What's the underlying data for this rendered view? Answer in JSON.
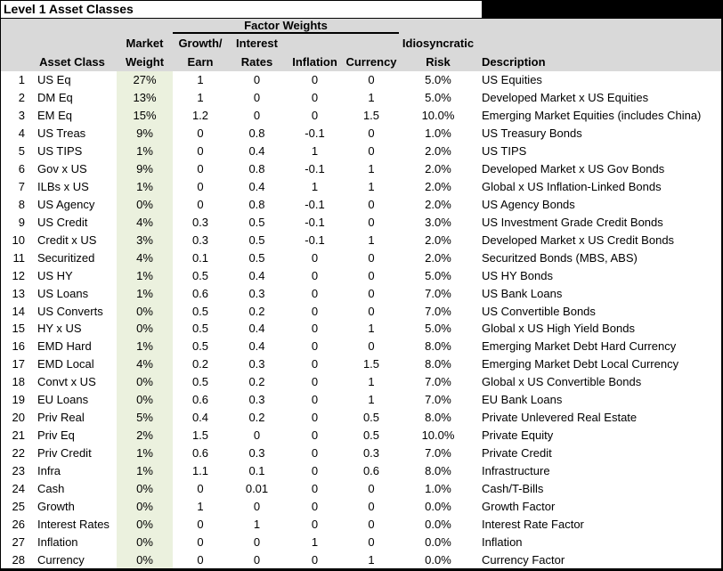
{
  "title": "Level 1 Asset Classes",
  "colors": {
    "header_bg": "#d9d9d9",
    "market_weight_bg": "#ebf1de",
    "title_fill": "#000000"
  },
  "header": {
    "factor_weights_label": "Factor Weights",
    "asset_class": "Asset Class",
    "market_line1": "Market",
    "market_line2": "Weight",
    "growth_line1": "Growth/",
    "growth_line2": "Earn",
    "rates_line1": "Interest",
    "rates_line2": "Rates",
    "inflation": "Inflation",
    "currency": "Currency",
    "risk_line1": "Idiosyncratic",
    "risk_line2": "Risk",
    "description": "Description"
  },
  "table": {
    "rows": [
      {
        "num": "1",
        "asset": "US Eq",
        "mw": "27%",
        "growth": "1",
        "rates": "0",
        "inflation": "0",
        "currency": "0",
        "risk": "5.0%",
        "desc": "US Equities"
      },
      {
        "num": "2",
        "asset": "DM Eq",
        "mw": "13%",
        "growth": "1",
        "rates": "0",
        "inflation": "0",
        "currency": "1",
        "risk": "5.0%",
        "desc": "Developed Market x US Equities"
      },
      {
        "num": "3",
        "asset": "EM Eq",
        "mw": "15%",
        "growth": "1.2",
        "rates": "0",
        "inflation": "0",
        "currency": "1.5",
        "risk": "10.0%",
        "desc": "Emerging Market Equities (includes China)"
      },
      {
        "num": "4",
        "asset": "US Treas",
        "mw": "9%",
        "growth": "0",
        "rates": "0.8",
        "inflation": "-0.1",
        "currency": "0",
        "risk": "1.0%",
        "desc": "US Treasury Bonds"
      },
      {
        "num": "5",
        "asset": "US TIPS",
        "mw": "1%",
        "growth": "0",
        "rates": "0.4",
        "inflation": "1",
        "currency": "0",
        "risk": "2.0%",
        "desc": "US TIPS"
      },
      {
        "num": "6",
        "asset": "Gov x US",
        "mw": "9%",
        "growth": "0",
        "rates": "0.8",
        "inflation": "-0.1",
        "currency": "1",
        "risk": "2.0%",
        "desc": "Developed Market x US Gov Bonds"
      },
      {
        "num": "7",
        "asset": "ILBs x US",
        "mw": "1%",
        "growth": "0",
        "rates": "0.4",
        "inflation": "1",
        "currency": "1",
        "risk": "2.0%",
        "desc": "Global x US Inflation-Linked Bonds"
      },
      {
        "num": "8",
        "asset": "US Agency",
        "mw": "0%",
        "growth": "0",
        "rates": "0.8",
        "inflation": "-0.1",
        "currency": "0",
        "risk": "2.0%",
        "desc": "US Agency Bonds"
      },
      {
        "num": "9",
        "asset": "US Credit",
        "mw": "4%",
        "growth": "0.3",
        "rates": "0.5",
        "inflation": "-0.1",
        "currency": "0",
        "risk": "3.0%",
        "desc": "US Investment Grade Credit Bonds"
      },
      {
        "num": "10",
        "asset": "Credit x US",
        "mw": "3%",
        "growth": "0.3",
        "rates": "0.5",
        "inflation": "-0.1",
        "currency": "1",
        "risk": "2.0%",
        "desc": "Developed Market x US Credit Bonds"
      },
      {
        "num": "11",
        "asset": "Securitized",
        "mw": "4%",
        "growth": "0.1",
        "rates": "0.5",
        "inflation": "0",
        "currency": "0",
        "risk": "2.0%",
        "desc": "Securitzed Bonds (MBS, ABS)"
      },
      {
        "num": "12",
        "asset": "US HY",
        "mw": "1%",
        "growth": "0.5",
        "rates": "0.4",
        "inflation": "0",
        "currency": "0",
        "risk": "5.0%",
        "desc": "US HY Bonds"
      },
      {
        "num": "13",
        "asset": "US Loans",
        "mw": "1%",
        "growth": "0.6",
        "rates": "0.3",
        "inflation": "0",
        "currency": "0",
        "risk": "7.0%",
        "desc": "US Bank Loans"
      },
      {
        "num": "14",
        "asset": "US Converts",
        "mw": "0%",
        "growth": "0.5",
        "rates": "0.2",
        "inflation": "0",
        "currency": "0",
        "risk": "7.0%",
        "desc": "US Convertible Bonds"
      },
      {
        "num": "15",
        "asset": "HY x US",
        "mw": "0%",
        "growth": "0.5",
        "rates": "0.4",
        "inflation": "0",
        "currency": "1",
        "risk": "5.0%",
        "desc": "Global x US High Yield Bonds"
      },
      {
        "num": "16",
        "asset": "EMD Hard",
        "mw": "1%",
        "growth": "0.5",
        "rates": "0.4",
        "inflation": "0",
        "currency": "0",
        "risk": "8.0%",
        "desc": "Emerging Market Debt Hard Currency"
      },
      {
        "num": "17",
        "asset": "EMD Local",
        "mw": "4%",
        "growth": "0.2",
        "rates": "0.3",
        "inflation": "0",
        "currency": "1.5",
        "risk": "8.0%",
        "desc": "Emerging Market Debt Local Currency"
      },
      {
        "num": "18",
        "asset": "Convt x US",
        "mw": "0%",
        "growth": "0.5",
        "rates": "0.2",
        "inflation": "0",
        "currency": "1",
        "risk": "7.0%",
        "desc": "Global x US Convertible Bonds"
      },
      {
        "num": "19",
        "asset": "EU Loans",
        "mw": "0%",
        "growth": "0.6",
        "rates": "0.3",
        "inflation": "0",
        "currency": "1",
        "risk": "7.0%",
        "desc": "EU Bank Loans"
      },
      {
        "num": "20",
        "asset": "Priv Real",
        "mw": "5%",
        "growth": "0.4",
        "rates": "0.2",
        "inflation": "0",
        "currency": "0.5",
        "risk": "8.0%",
        "desc": "Private Unlevered Real Estate"
      },
      {
        "num": "21",
        "asset": "Priv Eq",
        "mw": "2%",
        "growth": "1.5",
        "rates": "0",
        "inflation": "0",
        "currency": "0.5",
        "risk": "10.0%",
        "desc": "Private Equity"
      },
      {
        "num": "22",
        "asset": "Priv Credit",
        "mw": "1%",
        "growth": "0.6",
        "rates": "0.3",
        "inflation": "0",
        "currency": "0.3",
        "risk": "7.0%",
        "desc": "Private Credit"
      },
      {
        "num": "23",
        "asset": "Infra",
        "mw": "1%",
        "growth": "1.1",
        "rates": "0.1",
        "inflation": "0",
        "currency": "0.6",
        "risk": "8.0%",
        "desc": "Infrastructure"
      },
      {
        "num": "24",
        "asset": "Cash",
        "mw": "0%",
        "growth": "0",
        "rates": "0.01",
        "inflation": "0",
        "currency": "0",
        "risk": "1.0%",
        "desc": "Cash/T-Bills"
      },
      {
        "num": "25",
        "asset": "Growth",
        "mw": "0%",
        "growth": "1",
        "rates": "0",
        "inflation": "0",
        "currency": "0",
        "risk": "0.0%",
        "desc": "Growth Factor"
      },
      {
        "num": "26",
        "asset": "Interest Rates",
        "mw": "0%",
        "growth": "0",
        "rates": "1",
        "inflation": "0",
        "currency": "0",
        "risk": "0.0%",
        "desc": "Interest Rate Factor"
      },
      {
        "num": "27",
        "asset": "Inflation",
        "mw": "0%",
        "growth": "0",
        "rates": "0",
        "inflation": "1",
        "currency": "0",
        "risk": "0.0%",
        "desc": "Inflation"
      },
      {
        "num": "28",
        "asset": "Currency",
        "mw": "0%",
        "growth": "0",
        "rates": "0",
        "inflation": "0",
        "currency": "1",
        "risk": "0.0%",
        "desc": "Currency Factor"
      }
    ]
  }
}
